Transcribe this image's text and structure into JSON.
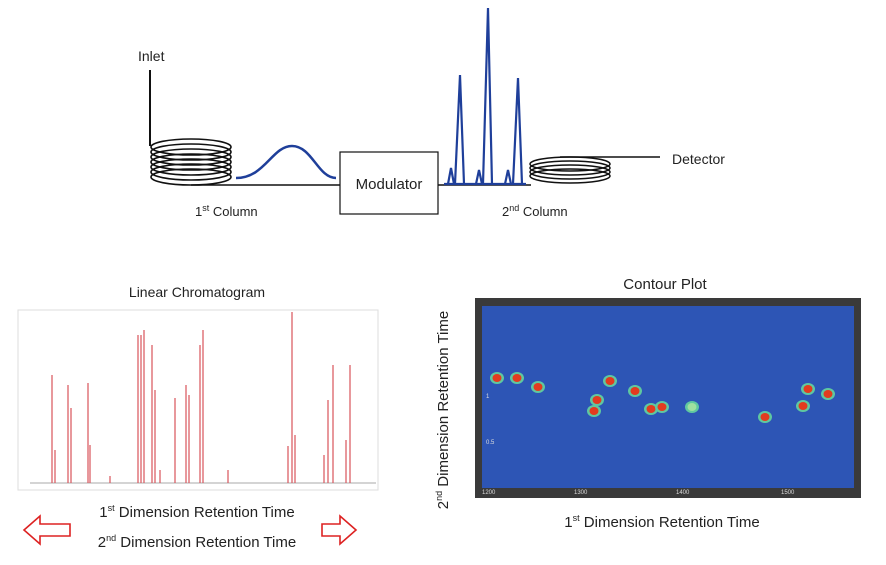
{
  "diagram": {
    "inlet": "Inlet",
    "detector": "Detector",
    "modulator": "Modulator",
    "first_column": {
      "ordinal": "1",
      "suffix": "st",
      "rest": " Column"
    },
    "second_column": {
      "ordinal": "2",
      "suffix": "nd",
      "rest": " Column"
    }
  },
  "linear_chromatogram": {
    "title": "Linear Chromatogram",
    "first_dimension": {
      "ordinal": "1",
      "suffix": "st",
      "rest": " Dimension Retention Time"
    },
    "second_dimension": {
      "ordinal": "2",
      "suffix": "nd",
      "rest": " Dimension Retention Time"
    }
  },
  "contour_plot": {
    "title": "Contour Plot",
    "x_label": {
      "ordinal": "1",
      "suffix": "st",
      "rest": " Dimension Retention Time"
    },
    "y_label": {
      "ordinal": "2",
      "suffix": "nd",
      "rest": " Dimension Retention Time"
    },
    "x_ticks": [
      "1200",
      "1300",
      "1400",
      "1500"
    ],
    "y_ticks": [
      "1",
      "0.5"
    ]
  }
}
